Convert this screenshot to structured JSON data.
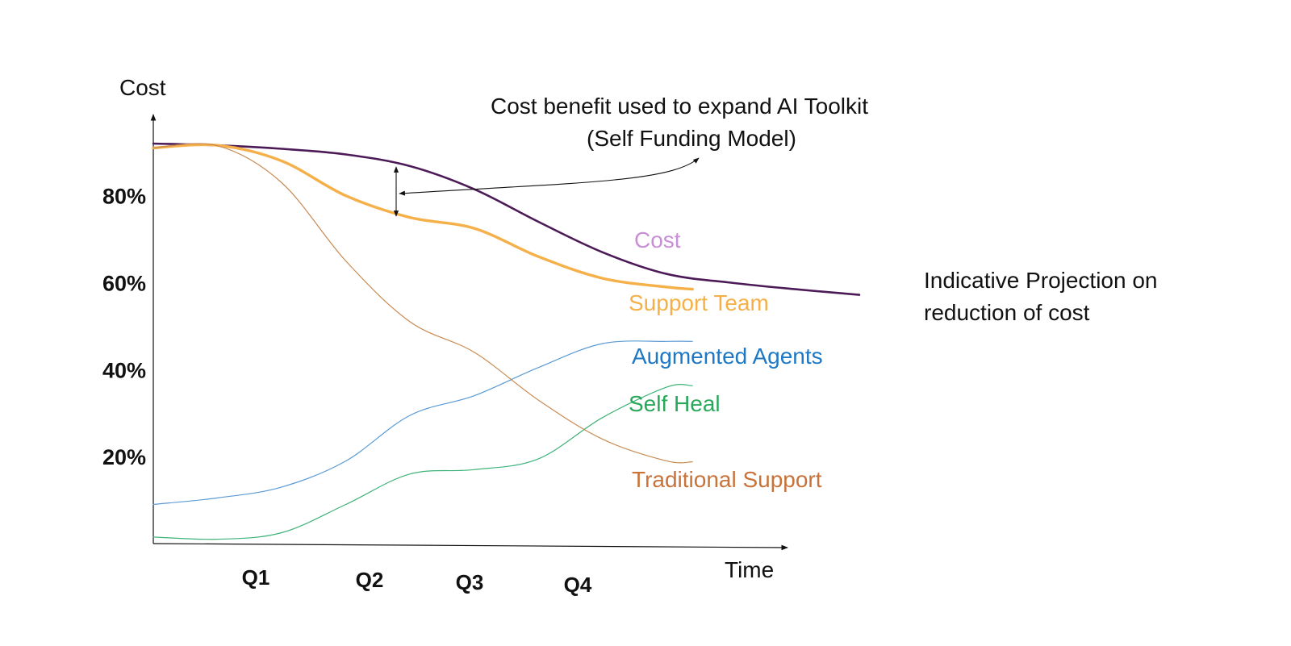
{
  "chart_data": {
    "type": "line",
    "title": "",
    "ylabel": "Cost",
    "xlabel": "Time",
    "x_ticks": [
      "Q1",
      "Q2",
      "Q3",
      "Q4"
    ],
    "y_ticks": [
      "20%",
      "40%",
      "60%",
      "80%"
    ],
    "y_tick_values": [
      20,
      40,
      60,
      80
    ],
    "xlim": [
      0,
      5.5
    ],
    "ylim": [
      0,
      92
    ],
    "grid": false,
    "series": [
      {
        "name": "Cost",
        "color": "#4b1a57",
        "label_color": "#c98fd6",
        "x": [
          0,
          0.5,
          1,
          1.5,
          2,
          2.5,
          3,
          3.5,
          4,
          4.5,
          5,
          5.5
        ],
        "y": [
          92,
          91.6,
          90.8,
          89.5,
          86.8,
          81.5,
          74,
          67,
          62,
          60,
          58.5,
          57.2
        ]
      },
      {
        "name": "Support Team",
        "color": "#f5b04a",
        "label_color": "#f5b04a",
        "x": [
          0,
          0.5,
          1,
          1.5,
          2,
          2.5,
          3,
          3.5,
          4,
          4.2
        ],
        "y": [
          91,
          91.6,
          88,
          80,
          75,
          72.5,
          66,
          61,
          59,
          58.5
        ]
      },
      {
        "name": "Augmented Agents",
        "color": "#5b9bd5",
        "label_color": "#1f78c4",
        "x": [
          0,
          0.5,
          1,
          1.5,
          2,
          2.5,
          3,
          3.5,
          4,
          4.2
        ],
        "y": [
          9,
          10.5,
          13,
          19,
          29.5,
          34,
          40.5,
          46,
          46.5,
          46.5
        ]
      },
      {
        "name": "Self Heal",
        "color": "#3fb37a",
        "label_color": "#2aa85a",
        "x": [
          0,
          0.5,
          1,
          1.5,
          2,
          2.5,
          3,
          3.5,
          4,
          4.2
        ],
        "y": [
          1.5,
          1,
          2.5,
          9,
          16,
          17,
          19.5,
          29,
          36,
          36.3
        ]
      },
      {
        "name": "Traditional Support",
        "color": "#c98a52",
        "label_color": "#c8733a",
        "x": [
          0,
          0.5,
          1,
          1.5,
          2,
          2.5,
          3,
          3.5,
          4,
          4.2
        ],
        "y": [
          91,
          91.5,
          83,
          65,
          51,
          44,
          33,
          24,
          19,
          18.8
        ]
      }
    ],
    "annotations": [
      "Cost benefit used to expand AI Toolkit",
      "(Self Funding Model)",
      "Indicative Projection on",
      "reduction of cost"
    ]
  }
}
